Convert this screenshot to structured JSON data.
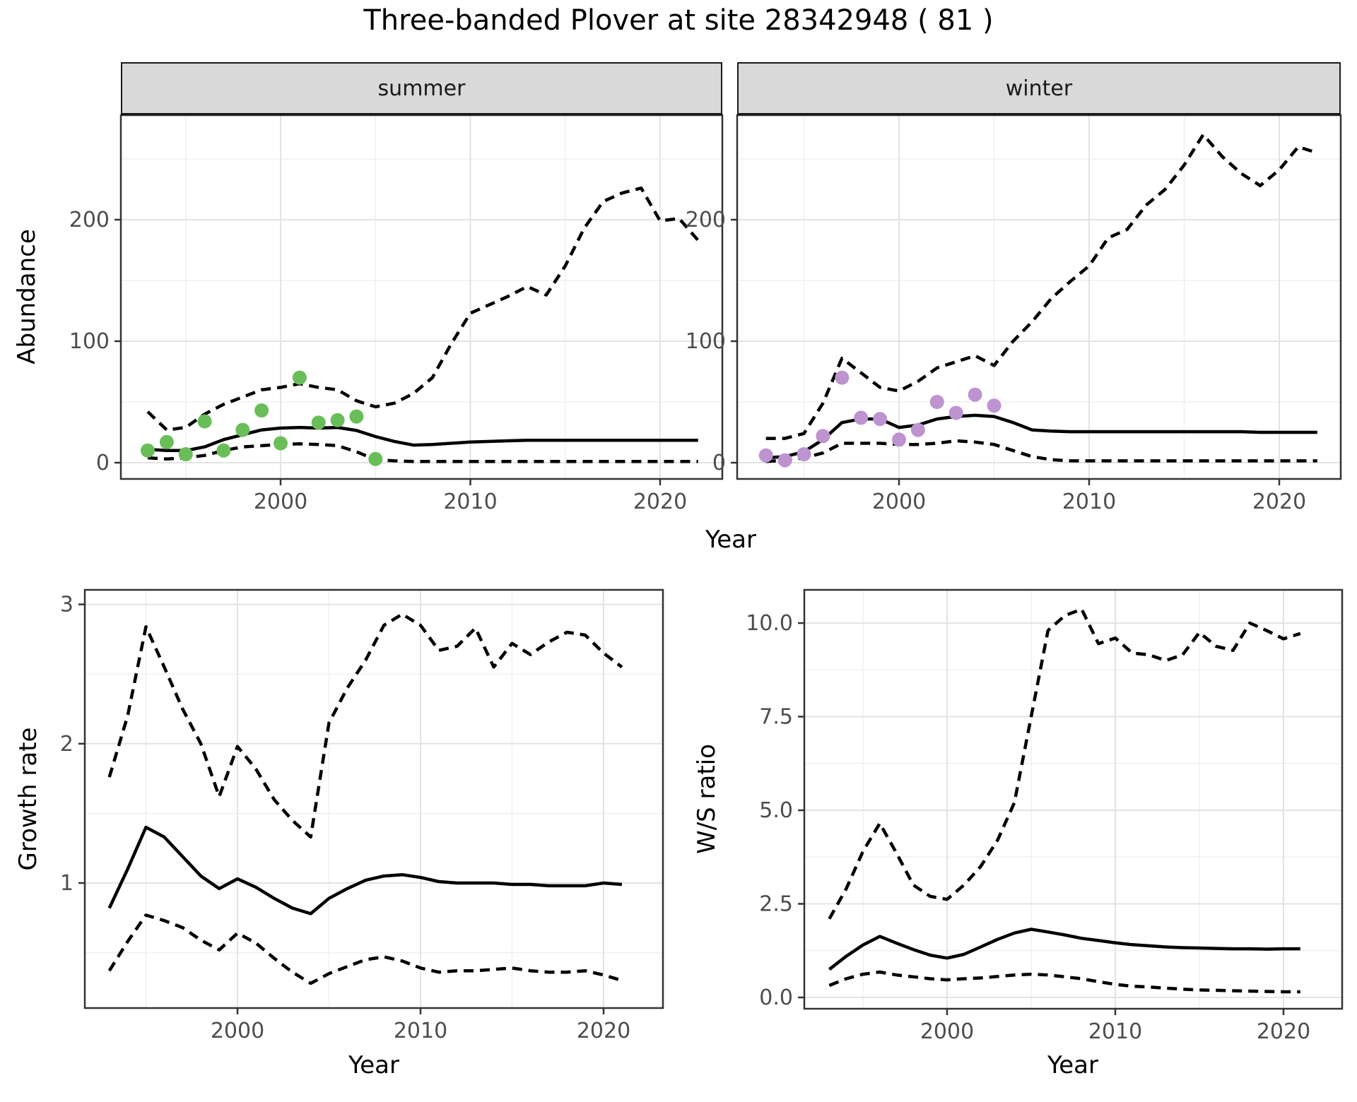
{
  "title": "Three-banded Plover at site 28342948 ( 81 )",
  "facets": {
    "summer": "summer",
    "winter": "winter"
  },
  "labels": {
    "abundance": "Abundance",
    "year": "Year",
    "growth_rate": "Growth rate",
    "ws_ratio": "W/S ratio"
  },
  "colors": {
    "summer_points": "#6ABE59",
    "winter_points": "#BD93D0",
    "line": "#000000",
    "axis_text": "#4d4d4d",
    "axis_title": "#000000",
    "tick_mark": "#333333",
    "panel_border": "#333333",
    "strip_bg": "#d9d9d9",
    "grid_major": "#e3e3e3",
    "grid_minor": "#f0f0f0",
    "panel_bg": "#ffffff"
  },
  "chart_data": [
    {
      "id": "abundance-summer",
      "type": "line",
      "facet": "summer",
      "xlabel": "Year",
      "ylabel": "Abundance",
      "x": [
        1993,
        1994,
        1995,
        1996,
        1997,
        1998,
        1999,
        2000,
        2001,
        2002,
        2003,
        2004,
        2005,
        2006,
        2007,
        2008,
        2009,
        2010,
        2011,
        2012,
        2013,
        2014,
        2015,
        2016,
        2017,
        2018,
        2019,
        2020,
        2021,
        2022
      ],
      "series": [
        {
          "name": "median",
          "style": "solid",
          "values": [
            11,
            10,
            10,
            13,
            19,
            23,
            27,
            28.5,
            29,
            28.5,
            29,
            26.5,
            21.5,
            17.5,
            14.5,
            15,
            16,
            17,
            17.5,
            18,
            18.5,
            18.5,
            18.5,
            18.5,
            18.5,
            18.5,
            18.5,
            18.5,
            18.5,
            18.5
          ]
        },
        {
          "name": "upper-ci",
          "style": "dashed",
          "values": [
            42,
            27,
            29,
            40,
            48,
            54,
            60,
            62,
            65,
            62,
            60,
            51,
            46,
            49,
            57,
            70,
            98,
            123,
            130,
            137,
            145,
            138,
            162,
            193,
            215,
            222,
            226,
            199,
            201,
            183
          ]
        },
        {
          "name": "lower-ci",
          "style": "dashed",
          "values": [
            4,
            3,
            4,
            6,
            10,
            13,
            14,
            15,
            15.5,
            15,
            14,
            9,
            2.5,
            1.5,
            1,
            1,
            1,
            1,
            1,
            1,
            1,
            1,
            1,
            1,
            1,
            1,
            1,
            1,
            1,
            1
          ]
        }
      ],
      "points": {
        "name": "observed-abundance-summer",
        "x": [
          1993,
          1994,
          1995,
          1996,
          1997,
          1998,
          1999,
          2000,
          2001,
          2002,
          2003,
          2004,
          2005
        ],
        "y": [
          10,
          17,
          7,
          34,
          10,
          27,
          43,
          16,
          70,
          33,
          35,
          38,
          3
        ]
      },
      "axes": {
        "xticks": [
          2000,
          2010,
          2020
        ],
        "xtick_labels": [
          "2000",
          "2010",
          "2020"
        ],
        "xminor": [
          1995,
          2005,
          2015
        ],
        "yticks": [
          0,
          100,
          200
        ],
        "ytick_labels": [
          "0",
          "100",
          "200"
        ],
        "yminor": [
          50,
          150,
          250
        ],
        "xlim": [
          1991.6,
          2023.3
        ],
        "ylim": [
          -13,
          286
        ],
        "grid": true,
        "legend": "none"
      }
    },
    {
      "id": "abundance-winter",
      "type": "line",
      "facet": "winter",
      "xlabel": "Year",
      "ylabel": "Abundance",
      "x": [
        1993,
        1994,
        1995,
        1996,
        1997,
        1998,
        1999,
        2000,
        2001,
        2002,
        2003,
        2004,
        2005,
        2006,
        2007,
        2008,
        2009,
        2010,
        2011,
        2012,
        2013,
        2014,
        2015,
        2016,
        2017,
        2018,
        2019,
        2020,
        2021,
        2022
      ],
      "series": [
        {
          "name": "median",
          "style": "solid",
          "values": [
            4,
            5,
            9,
            19,
            33,
            36,
            36,
            29,
            31,
            36,
            38,
            39,
            38,
            33,
            27,
            26,
            25.5,
            25.5,
            25.5,
            25.5,
            25.5,
            25.5,
            25.5,
            25.5,
            25.5,
            25.5,
            25,
            25,
            25,
            25
          ]
        },
        {
          "name": "upper-ci",
          "style": "dashed",
          "values": [
            20,
            20,
            24,
            49,
            86,
            74,
            62,
            59,
            67,
            78,
            83,
            88,
            80,
            100,
            116,
            135,
            149,
            162,
            185,
            192,
            212,
            225,
            245,
            270,
            252,
            238,
            228,
            241,
            260,
            255
          ]
        },
        {
          "name": "lower-ci",
          "style": "dashed",
          "values": [
            1,
            2,
            4,
            8,
            16,
            16,
            16,
            15,
            15,
            16,
            18,
            17,
            15,
            10,
            5,
            2.5,
            1.5,
            1.5,
            1.5,
            1.5,
            1.5,
            1.5,
            1.5,
            1.5,
            1.5,
            1.5,
            1.5,
            1.5,
            1.5,
            1.5
          ]
        }
      ],
      "points": {
        "name": "observed-abundance-winter",
        "x": [
          1993,
          1994,
          1995,
          1996,
          1997,
          1998,
          1999,
          2000,
          2001,
          2002,
          2003,
          2004,
          2005
        ],
        "y": [
          6,
          2,
          7,
          22,
          70,
          37,
          36,
          19,
          27,
          50,
          41,
          56,
          47
        ]
      },
      "axes": {
        "xticks": [
          2000,
          2010,
          2020
        ],
        "xtick_labels": [
          "2000",
          "2010",
          "2020"
        ],
        "xminor": [
          1995,
          2005,
          2015
        ],
        "yticks": [
          0,
          100,
          200
        ],
        "ytick_labels": [
          "0",
          "100",
          "200"
        ],
        "yminor": [
          50,
          150,
          250
        ],
        "xlim": [
          1991.5,
          2023.3
        ],
        "ylim": [
          -13,
          286
        ],
        "grid": true,
        "legend": "none"
      }
    },
    {
      "id": "growth-rate",
      "type": "line",
      "xlabel": "Year",
      "ylabel": "Growth rate",
      "x": [
        1993,
        1994,
        1995,
        1996,
        1997,
        1998,
        1999,
        2000,
        2001,
        2002,
        2003,
        2004,
        2005,
        2006,
        2007,
        2008,
        2009,
        2010,
        2011,
        2012,
        2013,
        2014,
        2015,
        2016,
        2017,
        2018,
        2019,
        2020,
        2021
      ],
      "series": [
        {
          "name": "median",
          "style": "solid",
          "values": [
            0.82,
            1.1,
            1.4,
            1.33,
            1.19,
            1.05,
            0.96,
            1.03,
            0.97,
            0.89,
            0.82,
            0.78,
            0.89,
            0.96,
            1.02,
            1.05,
            1.06,
            1.04,
            1.01,
            1.0,
            1.0,
            1.0,
            0.99,
            0.99,
            0.98,
            0.98,
            0.98,
            1.0,
            0.99
          ]
        },
        {
          "name": "upper-ci",
          "style": "dashed",
          "values": [
            1.76,
            2.2,
            2.84,
            2.55,
            2.25,
            2.0,
            1.62,
            1.98,
            1.82,
            1.6,
            1.45,
            1.33,
            2.15,
            2.4,
            2.6,
            2.85,
            2.93,
            2.85,
            2.67,
            2.7,
            2.83,
            2.55,
            2.72,
            2.64,
            2.73,
            2.8,
            2.78,
            2.65,
            2.55
          ]
        },
        {
          "name": "lower-ci",
          "style": "dashed",
          "values": [
            0.37,
            0.58,
            0.77,
            0.73,
            0.68,
            0.59,
            0.52,
            0.64,
            0.57,
            0.46,
            0.36,
            0.28,
            0.35,
            0.4,
            0.45,
            0.47,
            0.44,
            0.39,
            0.36,
            0.37,
            0.37,
            0.38,
            0.39,
            0.37,
            0.36,
            0.36,
            0.37,
            0.34,
            0.3
          ]
        }
      ],
      "axes": {
        "xticks": [
          2000,
          2010,
          2020
        ],
        "xtick_labels": [
          "2000",
          "2010",
          "2020"
        ],
        "xminor": [
          1995,
          2005,
          2015
        ],
        "yticks": [
          1,
          2,
          3
        ],
        "ytick_labels": [
          "1",
          "2",
          "3"
        ],
        "yminor": [
          0.5,
          1.5,
          2.5
        ],
        "xlim": [
          1991.7,
          2023.2
        ],
        "ylim": [
          0.1,
          3.04
        ],
        "grid": true,
        "legend": "none"
      }
    },
    {
      "id": "ws-ratio",
      "type": "line",
      "xlabel": "Year",
      "ylabel": "W/S ratio",
      "x": [
        1993,
        1994,
        1995,
        1996,
        1997,
        1998,
        1999,
        2000,
        2001,
        2002,
        2003,
        2004,
        2005,
        2006,
        2007,
        2008,
        2009,
        2010,
        2011,
        2012,
        2013,
        2014,
        2015,
        2016,
        2017,
        2018,
        2019,
        2020,
        2021
      ],
      "series": [
        {
          "name": "median",
          "style": "solid",
          "values": [
            0.75,
            1.1,
            1.4,
            1.63,
            1.45,
            1.28,
            1.13,
            1.05,
            1.15,
            1.35,
            1.55,
            1.72,
            1.82,
            1.75,
            1.67,
            1.58,
            1.52,
            1.46,
            1.41,
            1.38,
            1.35,
            1.33,
            1.32,
            1.31,
            1.3,
            1.3,
            1.29,
            1.3,
            1.3
          ]
        },
        {
          "name": "upper-ci",
          "style": "dashed",
          "values": [
            2.1,
            2.9,
            3.9,
            4.65,
            3.85,
            3.0,
            2.7,
            2.62,
            3.0,
            3.5,
            4.2,
            5.2,
            7.5,
            9.8,
            10.2,
            10.37,
            9.45,
            9.6,
            9.2,
            9.15,
            9.0,
            9.15,
            9.75,
            9.38,
            9.27,
            10.0,
            9.8,
            9.58,
            9.72
          ]
        },
        {
          "name": "lower-ci",
          "style": "dashed",
          "values": [
            0.32,
            0.5,
            0.62,
            0.68,
            0.6,
            0.55,
            0.5,
            0.47,
            0.5,
            0.52,
            0.56,
            0.6,
            0.62,
            0.6,
            0.55,
            0.5,
            0.42,
            0.35,
            0.3,
            0.28,
            0.25,
            0.22,
            0.2,
            0.19,
            0.18,
            0.17,
            0.16,
            0.15,
            0.15
          ]
        }
      ],
      "axes": {
        "xticks": [
          2000,
          2010,
          2020
        ],
        "xtick_labels": [
          "2000",
          "2010",
          "2020"
        ],
        "xminor": [
          1995,
          2005,
          2015
        ],
        "yticks": [
          0,
          2.5,
          5,
          7.5,
          10
        ],
        "ytick_labels": [
          "0.0",
          "2.5",
          "5.0",
          "7.5",
          "10.0"
        ],
        "yminor": [
          1.25,
          3.75,
          6.25,
          8.75
        ],
        "xlim": [
          1991.5,
          2023.5
        ],
        "ylim": [
          -0.3,
          10.89
        ],
        "grid": true,
        "legend": "none"
      }
    }
  ]
}
